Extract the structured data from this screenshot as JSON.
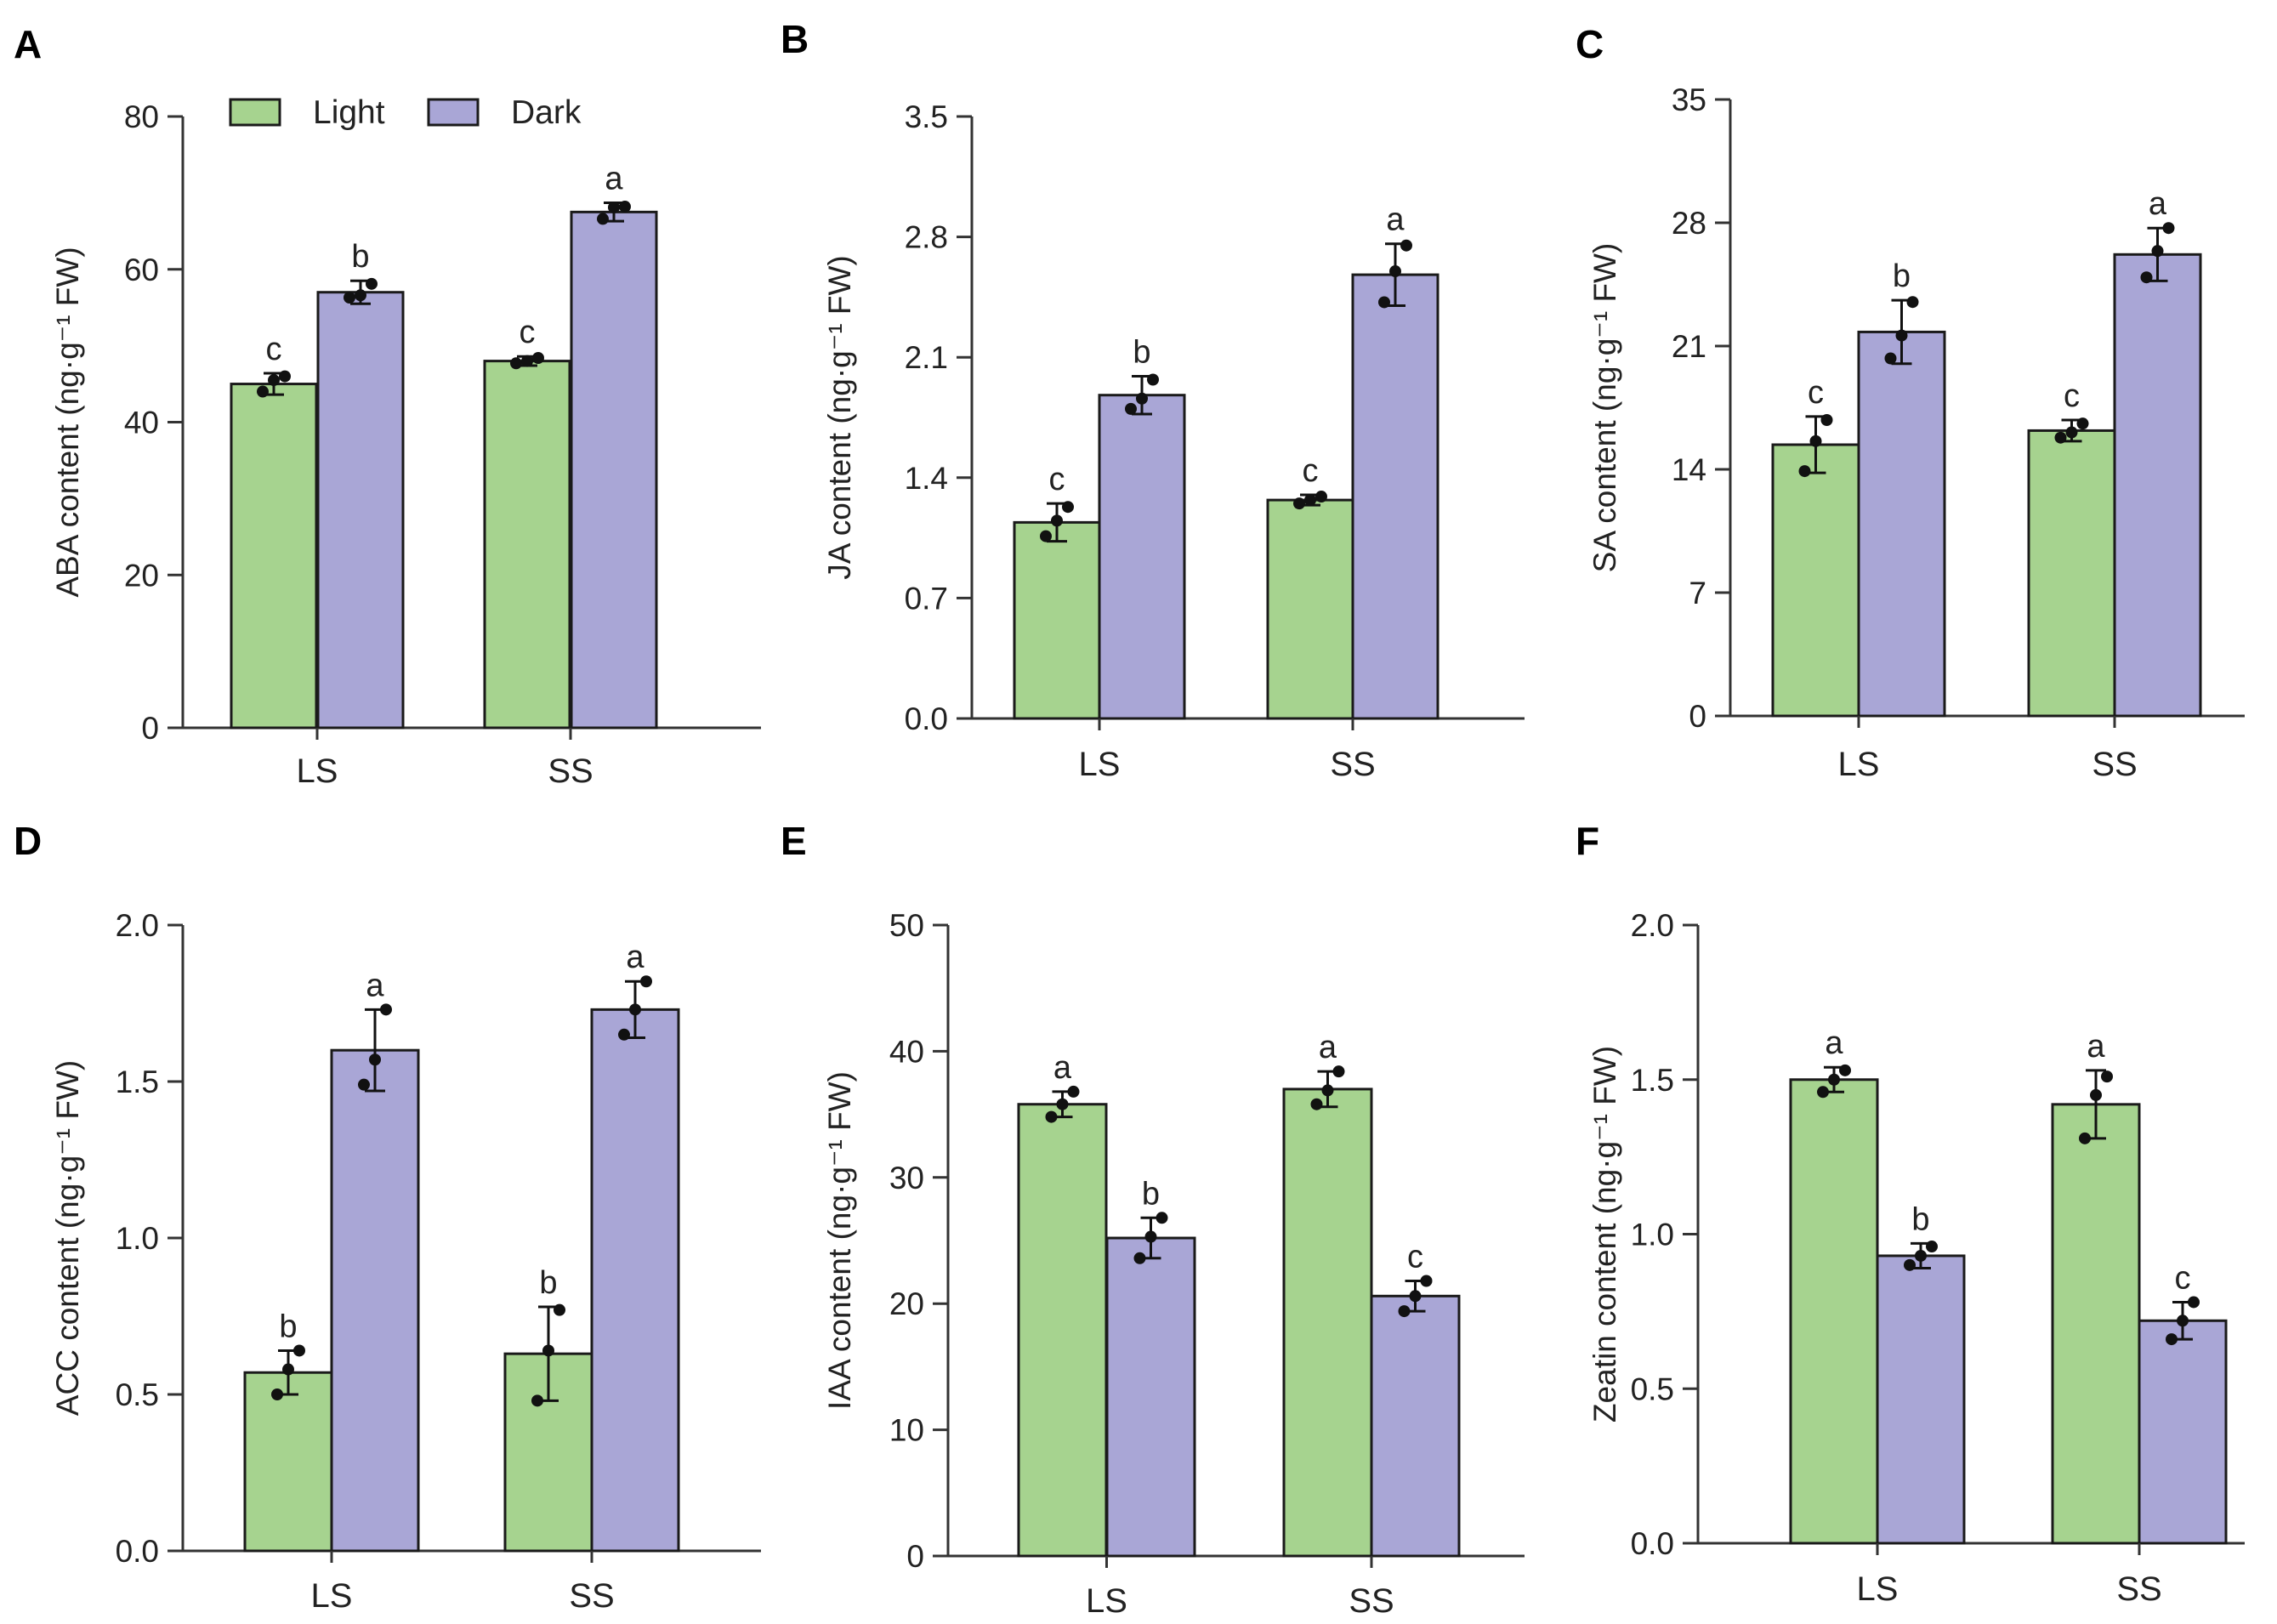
{
  "colors": {
    "light": "#a6d38f",
    "dark": "#a9a6d6"
  },
  "legend": {
    "light_label": "Light",
    "dark_label": "Dark"
  },
  "chart_data": [
    {
      "panel": "A",
      "type": "bar",
      "ylabel": "ABA content (ng·g⁻¹ FW)",
      "ticks": [
        "0",
        "20",
        "40",
        "60",
        "80"
      ],
      "ylim": [
        0,
        80
      ],
      "categories": [
        "LS",
        "SS"
      ],
      "series": [
        {
          "name": "Light",
          "values": [
            45,
            48
          ],
          "errors": [
            1.4,
            0.6
          ],
          "points": [
            [
              44,
              45.5,
              46
            ],
            [
              47.7,
              48,
              48.4
            ]
          ],
          "sig": [
            "c",
            "c"
          ]
        },
        {
          "name": "Dark",
          "values": [
            57,
            67.5
          ],
          "errors": [
            1.5,
            1.2
          ],
          "points": [
            [
              56.3,
              56.6,
              58.1
            ],
            [
              66.6,
              68.1,
              68.2
            ]
          ],
          "sig": [
            "b",
            "a"
          ]
        }
      ]
    },
    {
      "panel": "B",
      "type": "bar",
      "ylabel": "JA content (ng·g⁻¹ FW)",
      "ticks": [
        "0.0",
        "0.7",
        "1.4",
        "2.1",
        "2.8",
        "3.5"
      ],
      "ylim": [
        0,
        3.5
      ],
      "categories": [
        "LS",
        "SS"
      ],
      "series": [
        {
          "name": "Light",
          "values": [
            1.14,
            1.27
          ],
          "errors": [
            0.11,
            0.03
          ],
          "points": [
            [
              1.06,
              1.15,
              1.23
            ],
            [
              1.25,
              1.27,
              1.29
            ]
          ],
          "sig": [
            "c",
            "c"
          ]
        },
        {
          "name": "Dark",
          "values": [
            1.88,
            2.58
          ],
          "errors": [
            0.11,
            0.18
          ],
          "points": [
            [
              1.8,
              1.86,
              1.97
            ],
            [
              2.42,
              2.6,
              2.75
            ]
          ],
          "sig": [
            "b",
            "a"
          ]
        }
      ]
    },
    {
      "panel": "C",
      "type": "bar",
      "ylabel": "SA content (ng·g⁻¹ FW)",
      "ticks": [
        "0",
        "7",
        "14",
        "21",
        "28",
        "35"
      ],
      "ylim": [
        0,
        35
      ],
      "categories": [
        "LS",
        "SS"
      ],
      "series": [
        {
          "name": "Light",
          "values": [
            15.4,
            16.2
          ],
          "errors": [
            1.6,
            0.6
          ],
          "points": [
            [
              13.9,
              15.6,
              16.8
            ],
            [
              15.8,
              16.1,
              16.6
            ]
          ],
          "sig": [
            "c",
            "c"
          ]
        },
        {
          "name": "Dark",
          "values": [
            21.8,
            26.2
          ],
          "errors": [
            1.8,
            1.5
          ],
          "points": [
            [
              20.3,
              21.6,
              23.5
            ],
            [
              24.9,
              26.4,
              27.7
            ]
          ],
          "sig": [
            "b",
            "a"
          ]
        }
      ]
    },
    {
      "panel": "D",
      "type": "bar",
      "ylabel": "ACC content (ng·g⁻¹ FW)",
      "ticks": [
        "0.0",
        "0.5",
        "1.0",
        "1.5",
        "2.0"
      ],
      "ylim": [
        0,
        2.0
      ],
      "categories": [
        "LS",
        "SS"
      ],
      "series": [
        {
          "name": "Light",
          "values": [
            0.57,
            0.63
          ],
          "errors": [
            0.07,
            0.15
          ],
          "points": [
            [
              0.5,
              0.58,
              0.64
            ],
            [
              0.48,
              0.64,
              0.77
            ]
          ],
          "sig": [
            "b",
            "b"
          ]
        },
        {
          "name": "Dark",
          "values": [
            1.6,
            1.73
          ],
          "errors": [
            0.13,
            0.09
          ],
          "points": [
            [
              1.49,
              1.57,
              1.73
            ],
            [
              1.65,
              1.73,
              1.82
            ]
          ],
          "sig": [
            "a",
            "a"
          ]
        }
      ]
    },
    {
      "panel": "E",
      "type": "bar",
      "ylabel": "IAA content (ng·g⁻¹ FW)",
      "ticks": [
        "0",
        "10",
        "20",
        "30",
        "40",
        "50"
      ],
      "ylim": [
        0,
        50
      ],
      "categories": [
        "LS",
        "SS"
      ],
      "series": [
        {
          "name": "Light",
          "values": [
            35.8,
            37
          ],
          "errors": [
            1.0,
            1.4
          ],
          "points": [
            [
              34.8,
              35.8,
              36.8
            ],
            [
              35.8,
              36.9,
              38.4
            ]
          ],
          "sig": [
            "a",
            "a"
          ]
        },
        {
          "name": "Dark",
          "values": [
            25.2,
            20.6
          ],
          "errors": [
            1.6,
            1.2
          ],
          "points": [
            [
              23.6,
              25.3,
              26.8
            ],
            [
              19.4,
              20.6,
              21.8
            ]
          ],
          "sig": [
            "b",
            "c"
          ]
        }
      ]
    },
    {
      "panel": "F",
      "type": "bar",
      "ylabel": "Zeatin content (ng·g⁻¹ FW)",
      "ticks": [
        "0.0",
        "0.5",
        "1.0",
        "1.5",
        "2.0"
      ],
      "ylim": [
        0,
        2.0
      ],
      "categories": [
        "LS",
        "SS"
      ],
      "series": [
        {
          "name": "Light",
          "values": [
            1.5,
            1.42
          ],
          "errors": [
            0.04,
            0.11
          ],
          "points": [
            [
              1.46,
              1.5,
              1.53
            ],
            [
              1.31,
              1.45,
              1.51
            ]
          ],
          "sig": [
            "a",
            "a"
          ]
        },
        {
          "name": "Dark",
          "values": [
            0.93,
            0.72
          ],
          "errors": [
            0.04,
            0.06
          ],
          "points": [
            [
              0.9,
              0.93,
              0.96
            ],
            [
              0.66,
              0.72,
              0.78
            ]
          ],
          "sig": [
            "b",
            "c"
          ]
        }
      ]
    }
  ]
}
